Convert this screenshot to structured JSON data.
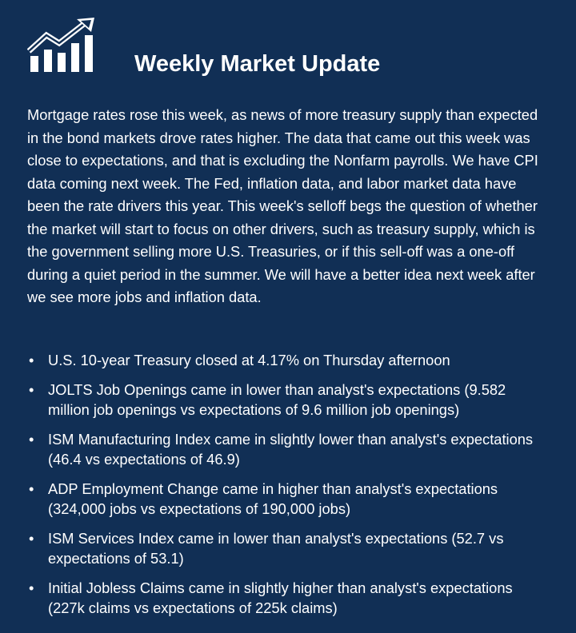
{
  "header": {
    "title": "Weekly Market Update",
    "logo_icon": "bar-chart-trend-up-icon"
  },
  "intro": "Mortgage rates rose this week, as news of more treasury supply than expected in the bond markets drove rates higher. The data that came out this week was close to expectations, and that is excluding the Nonfarm payrolls. We have CPI data coming next week. The Fed, inflation data, and labor market data have been the rate drivers this year. This week's selloff begs the question of whether the market will start to focus on other drivers, such as treasury supply, which is the government selling more U.S. Treasuries, or if this sell-off was a one-off during a quiet period in the summer. We will have a better idea next week after we see more jobs and inflation data.",
  "bullets": [
    "U.S. 10-year Treasury closed at 4.17% on Thursday afternoon",
    "JOLTS Job Openings came in lower than analyst's expectations (9.582 million job openings vs expectations of 9.6 million job openings)",
    "ISM Manufacturing Index came in slightly lower than analyst's expectations (46.4 vs expectations of 46.9)",
    "ADP Employment Change came in higher than analyst's expectations (324,000 jobs vs expectations of 190,000 jobs)",
    "ISM Services Index came in lower than analyst's expectations (52.7 vs expectations of 53.1)",
    "Initial Jobless Claims came in slightly higher than analyst's expectations (227k claims vs expectations of 225k claims)"
  ],
  "bullet_glyph": "•",
  "colors": {
    "background": "#112f55",
    "text": "#ffffff"
  }
}
